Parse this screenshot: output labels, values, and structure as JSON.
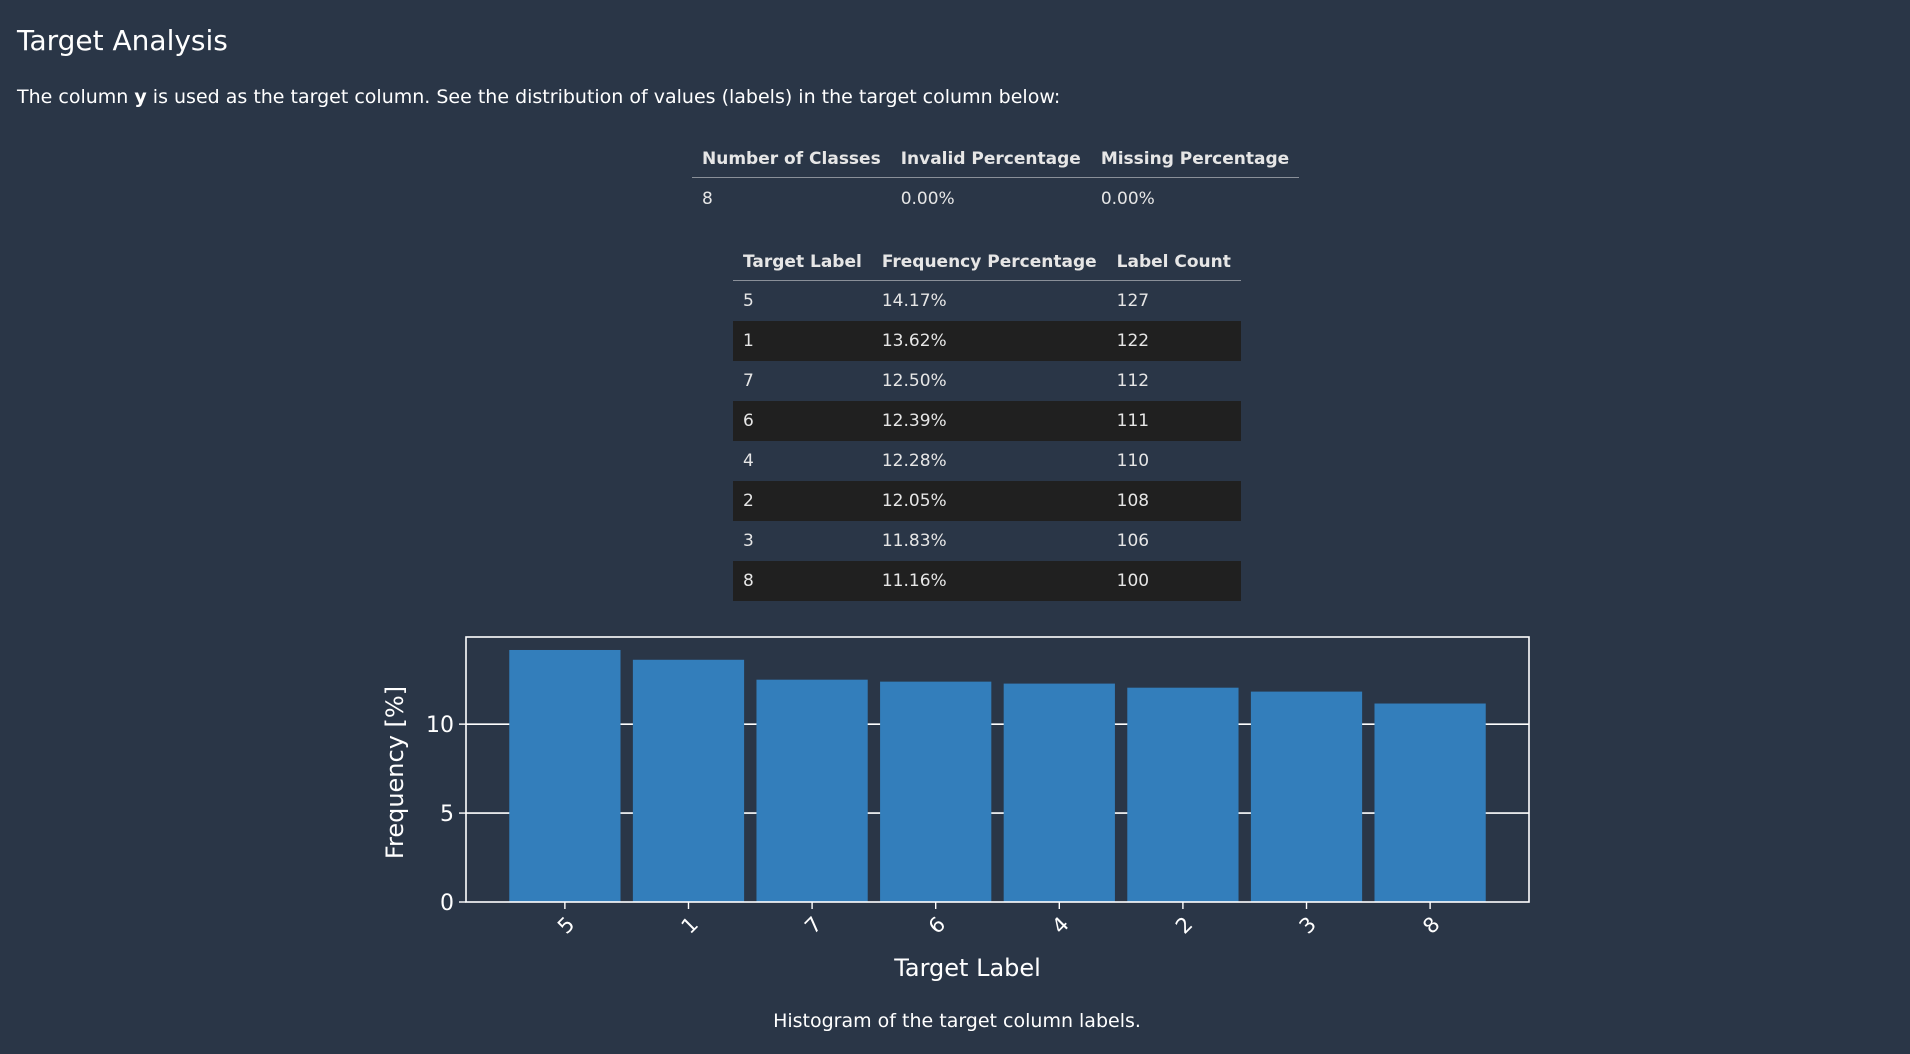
{
  "title": "Target Analysis",
  "intro": {
    "prefix": "The column ",
    "column": "y",
    "suffix": " is used as the target column. See the distribution of values (labels) in the target column below:"
  },
  "summary": {
    "headers": [
      "Number of Classes",
      "Invalid Percentage",
      "Missing Percentage"
    ],
    "row": [
      "8",
      "0.00%",
      "0.00%"
    ]
  },
  "distribution": {
    "headers": [
      "Target Label",
      "Frequency Percentage",
      "Label Count"
    ],
    "rows": [
      [
        "5",
        "14.17%",
        "127"
      ],
      [
        "1",
        "13.62%",
        "122"
      ],
      [
        "7",
        "12.50%",
        "112"
      ],
      [
        "6",
        "12.39%",
        "111"
      ],
      [
        "4",
        "12.28%",
        "110"
      ],
      [
        "2",
        "12.05%",
        "108"
      ],
      [
        "3",
        "11.83%",
        "106"
      ],
      [
        "8",
        "11.16%",
        "100"
      ]
    ]
  },
  "chart_data": {
    "type": "bar",
    "categories": [
      "5",
      "1",
      "7",
      "6",
      "4",
      "2",
      "3",
      "8"
    ],
    "values": [
      14.17,
      13.62,
      12.5,
      12.39,
      12.28,
      12.05,
      11.83,
      11.16
    ],
    "xlabel": "Target Label",
    "ylabel": "Frequency [%]",
    "ylim": [
      0,
      14.9
    ],
    "yticks": [
      0,
      5,
      10
    ],
    "grid": "horizontal",
    "colors": {
      "bar": "#337ebb",
      "axes": "#ffffff",
      "grid": "#ffffff",
      "text": "#ffffff"
    }
  },
  "caption": "Histogram of the target column labels."
}
